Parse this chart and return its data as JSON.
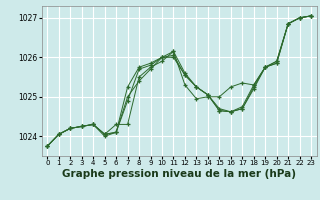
{
  "background_color": "#ceeaea",
  "grid_color": "#ffffff",
  "line_color": "#2d6a2d",
  "marker_color": "#2d6a2d",
  "xlabel": "Graphe pression niveau de la mer (hPa)",
  "xlabel_fontsize": 7.5,
  "xlim": [
    -0.5,
    23.5
  ],
  "ylim": [
    1023.5,
    1027.3
  ],
  "yticks": [
    1024,
    1025,
    1026,
    1027
  ],
  "xticks": [
    0,
    1,
    2,
    3,
    4,
    5,
    6,
    7,
    8,
    9,
    10,
    11,
    12,
    13,
    14,
    15,
    16,
    17,
    18,
    19,
    20,
    21,
    22,
    23
  ],
  "series": [
    [
      0,
      1023.75,
      1,
      1024.05,
      2,
      1024.2,
      3,
      1024.25,
      4,
      1024.3,
      5,
      1024.0,
      6,
      1024.1,
      7,
      1025.0,
      8,
      1025.4,
      9,
      1025.7,
      10,
      1026.0,
      11,
      1026.0,
      12,
      1025.55,
      13,
      1025.25,
      14,
      1025.05,
      15,
      1024.7,
      16,
      1024.62,
      17,
      1024.7,
      18,
      1025.2,
      19,
      1025.75,
      20,
      1025.85,
      21,
      1026.85,
      22,
      1027.0,
      23,
      1027.05
    ],
    [
      0,
      1023.75,
      1,
      1024.05,
      2,
      1024.2,
      3,
      1024.25,
      4,
      1024.3,
      5,
      1024.05,
      6,
      1024.3,
      7,
      1024.3,
      8,
      1025.5,
      9,
      1025.75,
      10,
      1025.9,
      11,
      1026.15,
      12,
      1025.3,
      13,
      1024.95,
      14,
      1025.0,
      15,
      1025.0,
      16,
      1025.25,
      17,
      1025.35,
      18,
      1025.3,
      19,
      1025.75,
      20,
      1025.85,
      21,
      1026.85,
      22,
      1027.0,
      23,
      1027.05
    ],
    [
      0,
      1023.75,
      1,
      1024.05,
      2,
      1024.2,
      3,
      1024.25,
      4,
      1024.3,
      5,
      1024.05,
      6,
      1024.1,
      7,
      1024.9,
      8,
      1025.7,
      9,
      1025.8,
      10,
      1026.0,
      11,
      1026.05,
      12,
      1025.55,
      13,
      1025.25,
      14,
      1025.05,
      15,
      1024.65,
      16,
      1024.62,
      17,
      1024.7,
      18,
      1025.25,
      19,
      1025.75,
      20,
      1025.9,
      21,
      1026.85,
      22,
      1027.0,
      23,
      1027.05
    ],
    [
      0,
      1023.75,
      1,
      1024.05,
      2,
      1024.2,
      3,
      1024.25,
      4,
      1024.3,
      5,
      1024.05,
      6,
      1024.1,
      7,
      1025.25,
      8,
      1025.75,
      9,
      1025.85,
      10,
      1026.0,
      11,
      1026.15,
      12,
      1025.6,
      13,
      1025.25,
      14,
      1025.05,
      15,
      1024.65,
      16,
      1024.62,
      17,
      1024.75,
      18,
      1025.3,
      19,
      1025.75,
      20,
      1025.9,
      21,
      1026.85,
      22,
      1027.0,
      23,
      1027.05
    ]
  ]
}
